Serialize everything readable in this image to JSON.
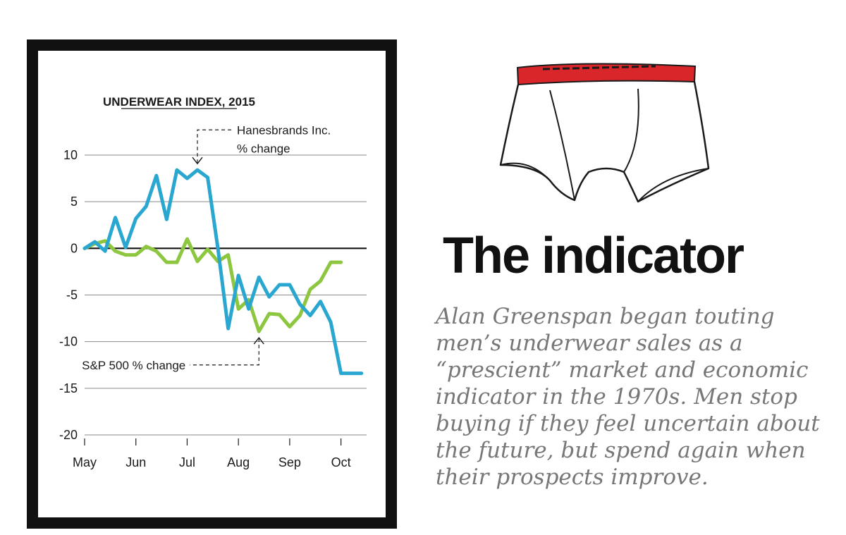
{
  "chart_data": {
    "type": "line",
    "title": "UNDERWEAR INDEX, 2015",
    "xlabel": "",
    "ylabel": "",
    "ylim": [
      -20,
      10
    ],
    "yticks": [
      10,
      5,
      0,
      -5,
      -10,
      -15,
      -20
    ],
    "ytick_labels": [
      "10",
      "5",
      "0",
      "-5",
      "-10",
      "-15",
      "-20"
    ],
    "months": [
      "May",
      "Jun",
      "Jul",
      "Aug",
      "Sep",
      "Oct"
    ],
    "xlim": [
      0,
      27.5
    ],
    "grid": true,
    "series": [
      {
        "name": "Hanesbrands Inc. % change",
        "color": "#2aa7d0",
        "x": [
          0,
          1,
          2,
          3,
          4,
          5,
          6,
          7,
          8,
          9,
          10,
          11,
          12,
          13,
          14,
          15,
          16,
          17,
          18,
          19,
          20,
          21,
          22,
          23,
          24,
          25,
          26,
          27
        ],
        "values": [
          0,
          0.7,
          -0.3,
          3.3,
          0.1,
          3.2,
          4.5,
          7.8,
          3.1,
          8.4,
          7.5,
          8.4,
          7.6,
          0,
          -8.6,
          -2.9,
          -6.5,
          -3.1,
          -5.2,
          -3.9,
          -3.9,
          -6,
          -7.2,
          -5.7,
          -7.9,
          -13.4,
          -13.4,
          -13.4
        ]
      },
      {
        "name": "S&P 500 % change",
        "color": "#8dc63f",
        "x": [
          0,
          1,
          2,
          3,
          4,
          5,
          6,
          7,
          8,
          9,
          10,
          11,
          12,
          13,
          14,
          15,
          16,
          17,
          18,
          19,
          20,
          21,
          22,
          23,
          24,
          25
        ],
        "values": [
          0,
          0.5,
          0.8,
          -0.3,
          -0.7,
          -0.7,
          0.2,
          -0.3,
          -1.5,
          -1.5,
          1,
          -1.4,
          -0.1,
          -1.4,
          -0.7,
          -6.5,
          -5.5,
          -8.9,
          -7,
          -7.1,
          -8.4,
          -7.2,
          -4.4,
          -3.5,
          -1.5,
          -1.5
        ]
      }
    ],
    "annotations": [
      {
        "line1": "Hanesbrands Inc.",
        "line2": "% change"
      },
      {
        "line1": "S&P 500 % change"
      }
    ]
  },
  "headline": "The indicator",
  "body_text": "Alan Greenspan began touting men’s underwear sales as a “prescient” market and economic indicator in the 1970s. Men stop buying if they feel uncertain about the future, but spend again when their prospects improve.",
  "colors": {
    "hanes_line": "#2aa7d0",
    "sp500_line": "#8dc63f",
    "waistband": "#d8262b",
    "frame": "#111111",
    "body_text": "#777777"
  },
  "icons": [
    "underwear-illustration"
  ]
}
